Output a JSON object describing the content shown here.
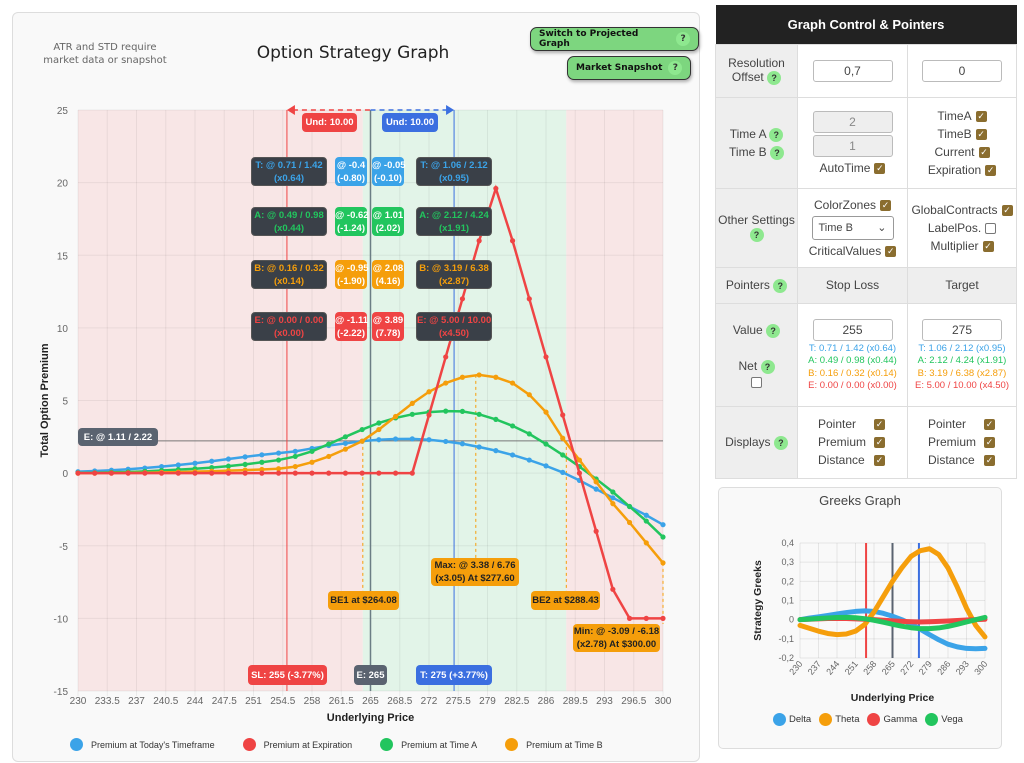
{
  "header": {
    "note": "ATR and STD require market data or snapshot",
    "title": "Option Strategy Graph",
    "switch_button": "Switch to Projected Graph",
    "snapshot_button": "Market Snapshot",
    "help": "?"
  },
  "colors": {
    "today": "#3ba3e8",
    "expiration": "#ef4444",
    "time_a": "#22c55e",
    "time_b": "#f59e0b",
    "loss_zone": "#f8e6e6",
    "profit_zone": "#e2f4e8",
    "entry": "#5a6370"
  },
  "annotations": {
    "und_left": "Und: 10.00",
    "und_right": "Und: 10.00",
    "rows": [
      {
        "key": "T",
        "left": [
          "T: @ 0.71 / 1.42",
          "(x0.64)"
        ],
        "mid1": [
          "@ -0.4",
          "(-0.80)"
        ],
        "mid2": [
          "@ -0.05",
          "(-0.10)"
        ],
        "right": [
          "T: @ 1.06 / 2.12",
          "(x0.95)"
        ]
      },
      {
        "key": "A",
        "left": [
          "A: @ 0.49 / 0.98",
          "(x0.44)"
        ],
        "mid1": [
          "@ -0.62",
          "(-1.24)"
        ],
        "mid2": [
          "@ 1.01",
          "(2.02)"
        ],
        "right": [
          "A: @ 2.12 / 4.24",
          "(x1.91)"
        ]
      },
      {
        "key": "B",
        "left": [
          "B: @ 0.16 / 0.32",
          "(x0.14)"
        ],
        "mid1": [
          "@ -0.95",
          "(-1.90)"
        ],
        "mid2": [
          "@ 2.08",
          "(4.16)"
        ],
        "right": [
          "B: @ 3.19 / 6.38",
          "(x2.87)"
        ]
      },
      {
        "key": "E",
        "left": [
          "E: @ 0.00 / 0.00",
          "(x0.00)"
        ],
        "mid1": [
          "@ -1.11",
          "(-2.22)"
        ],
        "mid2": [
          "@ 3.89",
          "(7.78)"
        ],
        "right": [
          "E: @ 5.00 / 10.00",
          "(x4.50)"
        ]
      }
    ],
    "entry_line": "E: @ 1.11 / 2.22",
    "max": [
      "Max: @ 3.38 / 6.76",
      "(x3.05) At $277.60"
    ],
    "min": [
      "Min: @ -3.09 / -6.18",
      "(x2.78) At $300.00"
    ],
    "be1": "BE1 at $264.08",
    "be2": "BE2 at $288.43",
    "sl": "SL: 255 (-3.77%)",
    "entry": "E: 265",
    "target": "T: 275 (+3.77%)"
  },
  "chart_data": [
    {
      "type": "line",
      "title": "",
      "xlabel": "Underlying Price",
      "ylabel": "Total Option Premium",
      "xlim": [
        230,
        300
      ],
      "ylim": [
        -15,
        25
      ],
      "xticks": [
        "230",
        "233.5",
        "237",
        "240.5",
        "244",
        "247.5",
        "251",
        "254.5",
        "258",
        "261.5",
        "265",
        "268.5",
        "272",
        "275.5",
        "279",
        "282.5",
        "286",
        "289.5",
        "293",
        "296.5",
        "300"
      ],
      "yticks": [
        -15,
        -10,
        -5,
        0,
        5,
        10,
        15,
        20,
        25
      ],
      "grid": true,
      "legend": "bottom",
      "zones": [
        {
          "from": 230,
          "to": 264.08,
          "kind": "loss"
        },
        {
          "from": 264.08,
          "to": 288.43,
          "kind": "profit"
        },
        {
          "from": 288.43,
          "to": 300,
          "kind": "loss"
        }
      ],
      "vlines": {
        "stop_loss": 255,
        "entry": 265,
        "target": 275
      },
      "hline_entry": 2.22,
      "breakevens": [
        264.08,
        288.43
      ],
      "max_at": [
        277.6,
        6.76
      ],
      "min_at": [
        300,
        -6.18
      ],
      "x": [
        230,
        232,
        234,
        236,
        238,
        240,
        242,
        244,
        246,
        248,
        250,
        252,
        254,
        256,
        258,
        260,
        262,
        264,
        266,
        268,
        270,
        272,
        274,
        276,
        278,
        280,
        282,
        284,
        286,
        288,
        290,
        292,
        294,
        296,
        298,
        300
      ],
      "series": [
        {
          "name": "Premium at Today's Timeframe",
          "color": "#3ba3e8",
          "values": [
            0.1,
            0.15,
            0.2,
            0.27,
            0.35,
            0.45,
            0.56,
            0.68,
            0.82,
            0.97,
            1.12,
            1.26,
            1.38,
            1.5,
            1.7,
            1.9,
            2.05,
            2.2,
            2.3,
            2.35,
            2.36,
            2.3,
            2.18,
            2.02,
            1.8,
            1.55,
            1.25,
            0.9,
            0.5,
            0.05,
            -0.5,
            -1.1,
            -1.7,
            -2.3,
            -2.9,
            -3.55
          ]
        },
        {
          "name": "Premium at Expiration",
          "color": "#ef4444",
          "values": [
            0,
            0,
            0,
            0,
            0,
            0,
            0,
            0,
            0,
            0,
            0,
            0,
            0,
            0,
            0,
            0,
            0,
            0,
            0,
            0,
            0,
            4,
            8,
            12,
            16,
            19.6,
            16,
            12,
            8,
            4,
            0,
            -4,
            -8,
            -10,
            -10,
            -10
          ]
        },
        {
          "name": "Premium at Time A",
          "color": "#22c55e",
          "values": [
            0.02,
            0.03,
            0.05,
            0.08,
            0.12,
            0.18,
            0.24,
            0.3,
            0.38,
            0.48,
            0.6,
            0.75,
            0.9,
            1.15,
            1.5,
            2.0,
            2.5,
            3.0,
            3.45,
            3.8,
            4.05,
            4.2,
            4.27,
            4.25,
            4.05,
            3.7,
            3.25,
            2.7,
            2.0,
            1.25,
            0.45,
            -0.4,
            -1.3,
            -2.3,
            -3.3,
            -4.4
          ]
        },
        {
          "name": "Premium at Time B",
          "color": "#f59e0b",
          "values": [
            0,
            0,
            0.01,
            0.02,
            0.03,
            0.05,
            0.07,
            0.1,
            0.13,
            0.17,
            0.21,
            0.25,
            0.3,
            0.45,
            0.75,
            1.15,
            1.65,
            2.2,
            3.0,
            3.9,
            4.8,
            5.6,
            6.2,
            6.6,
            6.76,
            6.6,
            6.2,
            5.4,
            4.2,
            2.4,
            0.9,
            -0.6,
            -2.1,
            -3.4,
            -4.8,
            -6.18
          ]
        }
      ]
    },
    {
      "type": "line",
      "title": "Greeks Graph",
      "xlabel": "Underlying Price",
      "ylabel": "Strategy Greeks",
      "xlim": [
        230,
        300
      ],
      "ylim": [
        -0.2,
        0.4
      ],
      "xticks": [
        "230",
        "237",
        "244",
        "251",
        "258",
        "265",
        "272",
        "279",
        "286",
        "293",
        "300"
      ],
      "yticks": [
        "-0,2",
        "-0,1",
        "0",
        "0,1",
        "0,2",
        "0,3",
        "0,4"
      ],
      "grid": true,
      "legend": "bottom",
      "vlines": {
        "stop_loss": 255,
        "entry": 265,
        "target": 275
      },
      "x": [
        230,
        233.5,
        237,
        240.5,
        244,
        247.5,
        251,
        254.5,
        258,
        261.5,
        265,
        268.5,
        272,
        275.5,
        279,
        282.5,
        286,
        289.5,
        293,
        296.5,
        300
      ],
      "series": [
        {
          "name": "Delta",
          "color": "#3ba3e8",
          "values": [
            0,
            0.008,
            0.015,
            0.022,
            0.03,
            0.037,
            0.043,
            0.046,
            0.043,
            0.033,
            0.018,
            0,
            -0.022,
            -0.05,
            -0.078,
            -0.105,
            -0.128,
            -0.142,
            -0.15,
            -0.152,
            -0.15
          ]
        },
        {
          "name": "Theta",
          "color": "#f59e0b",
          "values": [
            -0.03,
            -0.045,
            -0.06,
            -0.072,
            -0.078,
            -0.075,
            -0.06,
            -0.025,
            0.04,
            0.12,
            0.2,
            0.27,
            0.33,
            0.36,
            0.37,
            0.34,
            0.27,
            0.17,
            0.06,
            -0.03,
            -0.09
          ]
        },
        {
          "name": "Gamma",
          "color": "#ef4444",
          "values": [
            0,
            0.002,
            0.004,
            0.006,
            0.007,
            0.006,
            0.004,
            0.002,
            0,
            -0.003,
            -0.006,
            -0.009,
            -0.011,
            -0.012,
            -0.011,
            -0.009,
            -0.007,
            -0.004,
            -0.002,
            0,
            0.002
          ]
        },
        {
          "name": "Vega",
          "color": "#22c55e",
          "values": [
            0,
            0.003,
            0.006,
            0.009,
            0.011,
            0.012,
            0.01,
            0.005,
            -0.003,
            -0.013,
            -0.024,
            -0.034,
            -0.042,
            -0.047,
            -0.047,
            -0.043,
            -0.035,
            -0.024,
            -0.012,
            0,
            0.012
          ]
        }
      ]
    }
  ],
  "control": {
    "title": "Graph Control & Pointers",
    "resolution_label": "Resolution Offset",
    "resolution_value": "0,7",
    "offset_value": "0",
    "time_a_label": "Time A",
    "time_b_label": "Time B",
    "time_a_value": "2",
    "time_b_value": "1",
    "autotime": "AutoTime",
    "show": [
      {
        "label": "TimeA",
        "checked": true
      },
      {
        "label": "TimeB",
        "checked": true
      },
      {
        "label": "Current",
        "checked": true
      },
      {
        "label": "Expiration",
        "checked": true
      }
    ],
    "other_label": "Other Settings",
    "colorzones": "ColorZones",
    "zone_select": "Time B",
    "criticalvalues": "CriticalValues",
    "other_right": [
      {
        "label": "GlobalContracts",
        "checked": true
      },
      {
        "label": "LabelPos.",
        "checked": false
      },
      {
        "label": "Multiplier",
        "checked": true
      }
    ],
    "pointers_label": "Pointers",
    "stop_loss": "Stop Loss",
    "target": "Target",
    "value_label": "Value",
    "net_label": "Net",
    "net_checked": false,
    "sl_value": "255",
    "target_value": "275",
    "sl_lines": [
      "T: 0.71 / 1.42 (x0.64)",
      "A: 0.49 / 0.98 (x0.44)",
      "B: 0.16 / 0.32 (x0.14)",
      "E: 0.00 / 0.00 (x0.00)"
    ],
    "target_lines": [
      "T: 1.06 / 2.12 (x0.95)",
      "A: 2.12 / 4.24 (x1.91)",
      "B: 3.19 / 6.38 (x2.87)",
      "E: 5.00 / 10.00 (x4.50)"
    ],
    "displays_label": "Displays",
    "displays": [
      "Pointer",
      "Premium",
      "Distance"
    ]
  }
}
